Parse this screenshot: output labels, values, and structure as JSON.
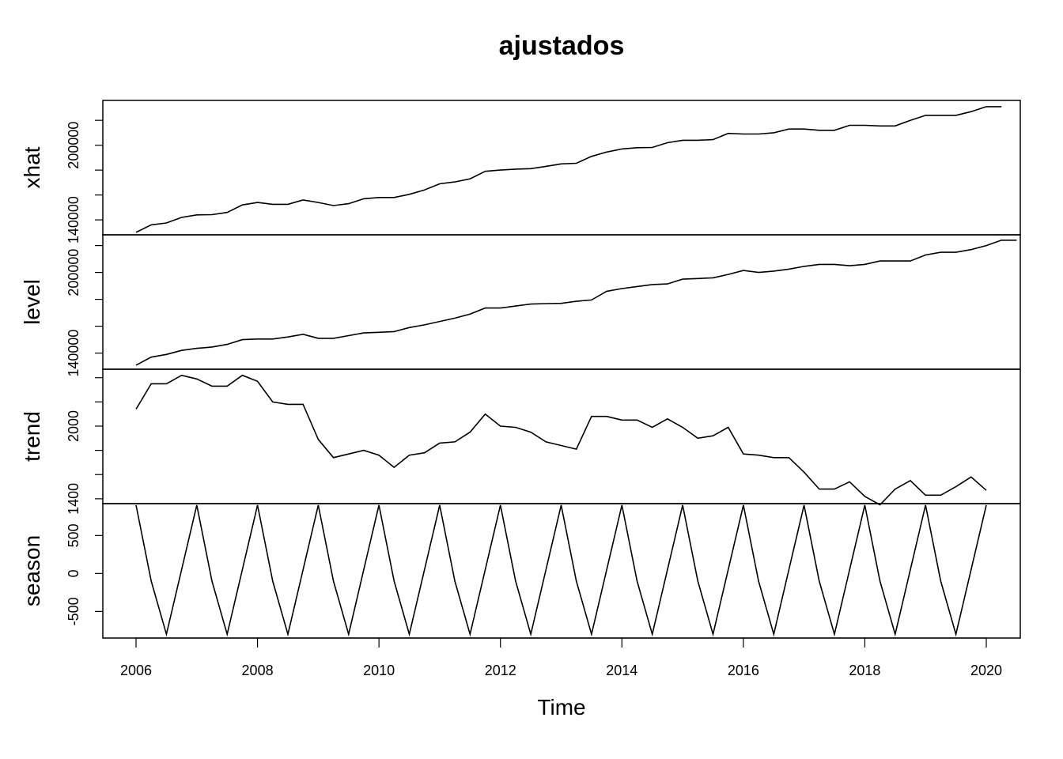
{
  "chart_data": {
    "type": "line",
    "title": "ajustados",
    "xlabel": "Time",
    "x_ticks": [
      2006,
      2008,
      2010,
      2012,
      2014,
      2016,
      2018,
      2020
    ],
    "x_range": [
      2006,
      2020
    ],
    "x_start": 2006.0,
    "x_step": 0.25,
    "panels": [
      {
        "name": "xhat",
        "ylabel": "xhat",
        "ylim": [
          128000,
          236000
        ],
        "y_ticks": [
          140000,
          160000,
          180000,
          200000,
          220000
        ],
        "y_tick_labels": [
          "140000",
          "",
          "",
          "200000",
          ""
        ],
        "values": [
          130000,
          136000,
          137500,
          142000,
          144000,
          144200,
          146000,
          152000,
          154000,
          152500,
          152500,
          156000,
          154000,
          151500,
          153000,
          157000,
          158000,
          158000,
          160500,
          164000,
          169000,
          170500,
          173000,
          179000,
          180000,
          180800,
          181200,
          183000,
          185000,
          185500,
          191000,
          194500,
          197000,
          198000,
          198200,
          202000,
          204000,
          204000,
          204500,
          209500,
          209000,
          209000,
          210000,
          213000,
          213000,
          212000,
          212000,
          216000,
          216000,
          215500,
          215500,
          220000,
          224000,
          224000,
          224000,
          227000,
          231000,
          231000
        ]
      },
      {
        "name": "level",
        "ylabel": "level",
        "ylim": [
          128000,
          228000
        ],
        "y_ticks": [
          140000,
          160000,
          180000,
          200000,
          220000
        ],
        "y_tick_labels": [
          "140000",
          "",
          "",
          "200000",
          ""
        ],
        "values": [
          131000,
          137000,
          139000,
          142000,
          143500,
          144500,
          146500,
          150000,
          150500,
          150500,
          152000,
          154000,
          151000,
          151000,
          153000,
          155000,
          155500,
          156000,
          159000,
          161000,
          163500,
          166000,
          169000,
          173500,
          173500,
          175000,
          176500,
          176800,
          177000,
          178500,
          179500,
          186000,
          188000,
          189500,
          191000,
          191500,
          195000,
          195500,
          196000,
          198500,
          201500,
          200000,
          201000,
          202500,
          204500,
          206000,
          206000,
          205000,
          206000,
          208500,
          208500,
          208500,
          213000,
          215000,
          215000,
          217000,
          220000,
          224000,
          224000
        ]
      },
      {
        "name": "trend",
        "ylabel": "trend",
        "ylim": [
          1360,
          2470
        ],
        "y_ticks": [
          1400,
          1600,
          1800,
          2000,
          2200,
          2400
        ],
        "y_tick_labels": [
          "1400",
          "",
          "",
          "2000",
          "",
          ""
        ],
        "values": [
          2140,
          2350,
          2350,
          2420,
          2390,
          2330,
          2330,
          2420,
          2370,
          2200,
          2180,
          2180,
          1890,
          1740,
          1770,
          1800,
          1760,
          1660,
          1760,
          1780,
          1860,
          1870,
          1950,
          2100,
          2000,
          1990,
          1950,
          1870,
          1840,
          1810,
          2080,
          2080,
          2050,
          2050,
          1990,
          2060,
          1990,
          1900,
          1920,
          1990,
          1770,
          1760,
          1740,
          1740,
          1620,
          1480,
          1480,
          1540,
          1420,
          1350,
          1480,
          1550,
          1430,
          1430,
          1500,
          1580,
          1470
        ]
      },
      {
        "name": "season",
        "ylabel": "season",
        "ylim": [
          -850,
          920
        ],
        "y_ticks": [
          -500,
          0,
          500
        ],
        "y_tick_labels": [
          "-500",
          "0",
          "500"
        ],
        "values": [
          900,
          -100,
          -800,
          50,
          900,
          -100,
          -800,
          50,
          900,
          -100,
          -800,
          50,
          900,
          -100,
          -800,
          50,
          900,
          -100,
          -800,
          50,
          900,
          -100,
          -800,
          50,
          900,
          -100,
          -800,
          50,
          900,
          -100,
          -800,
          50,
          900,
          -100,
          -800,
          50,
          900,
          -100,
          -800,
          50,
          900,
          -100,
          -800,
          50,
          900,
          -100,
          -800,
          50,
          900,
          -100,
          -800,
          50,
          900,
          -100,
          -800,
          50,
          900
        ]
      }
    ]
  }
}
